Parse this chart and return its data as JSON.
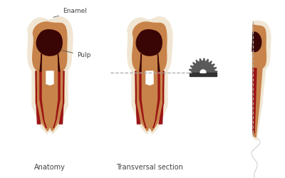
{
  "bg_color": "#ffffff",
  "enamel_color": "#f0e6d3",
  "dentin_color": "#c8834a",
  "pulp_dark_color": "#3a0505",
  "pulp_red_color": "#8b0000",
  "canal_red_color": "#9b1515",
  "saw_color": "#5a5a5a",
  "saw_dark": "#333333",
  "dashed_line_color": "#aaaaaa",
  "label_enamel": "Enamel",
  "label_pulp": "Pulp",
  "label_anatomy": "Anatomy",
  "label_transversal": "Transversal section",
  "text_color": "#444444",
  "title_fontsize": 7,
  "annotation_fontsize": 6.5
}
